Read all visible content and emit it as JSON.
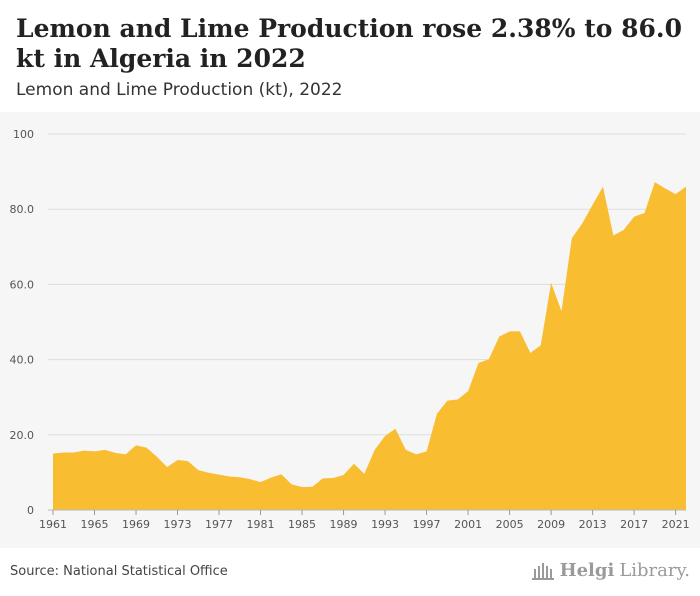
{
  "header": {
    "title": "Lemon and Lime Production rose 2.38% to 86.0 kt in Algeria in 2022",
    "subtitle": "Lemon and Lime Production (kt), 2022"
  },
  "footer": {
    "source": "Source: National Statistical Office",
    "logo_part1": "Helgi",
    "logo_part2": "Library."
  },
  "colors": {
    "area_fill": "#f8bd31",
    "gridline": "#dddddd",
    "plot_background": "#f6f6f6"
  },
  "chart_data": {
    "type": "area",
    "title": "Lemon and Lime Production (kt), 2022",
    "xlabel": "",
    "ylabel": "",
    "x": [
      1961,
      1962,
      1963,
      1964,
      1965,
      1966,
      1967,
      1968,
      1969,
      1970,
      1971,
      1972,
      1973,
      1974,
      1975,
      1976,
      1977,
      1978,
      1979,
      1980,
      1981,
      1982,
      1983,
      1984,
      1985,
      1986,
      1987,
      1988,
      1989,
      1990,
      1991,
      1992,
      1993,
      1994,
      1995,
      1996,
      1997,
      1998,
      1999,
      2000,
      2001,
      2002,
      2003,
      2004,
      2005,
      2006,
      2007,
      2008,
      2009,
      2010,
      2011,
      2012,
      2013,
      2014,
      2015,
      2016,
      2017,
      2018,
      2019,
      2020,
      2021,
      2022
    ],
    "series": [
      {
        "values": [
          15.0,
          15.3,
          15.3,
          15.8,
          15.6,
          16.0,
          15.2,
          14.8,
          17.2,
          16.6,
          14.2,
          11.4,
          13.3,
          13.0,
          10.6,
          9.9,
          9.4,
          8.9,
          8.7,
          8.2,
          7.4,
          8.6,
          9.5,
          6.8,
          6.1,
          6.2,
          8.4,
          8.5,
          9.3,
          12.3,
          9.6,
          16.0,
          19.7,
          21.6,
          16.0,
          14.8,
          15.6,
          25.6,
          29.1,
          29.4,
          31.6,
          39.1,
          40.1,
          46.1,
          47.5,
          47.5,
          41.8,
          43.8,
          60.4,
          52.9,
          72.3,
          76.2,
          81.2,
          86.0,
          73.0,
          74.5,
          78.0,
          79.0,
          87.2,
          85.5,
          84.0,
          86.0
        ]
      }
    ],
    "ylim": [
      0,
      100
    ],
    "y_ticks": [
      0,
      20,
      40,
      60,
      80,
      100
    ],
    "y_tick_labels": [
      "0",
      "20.0",
      "40.0",
      "60.0",
      "80.0",
      "100"
    ],
    "x_ticks": [
      1961,
      1965,
      1969,
      1973,
      1977,
      1981,
      1985,
      1989,
      1993,
      1997,
      2001,
      2005,
      2009,
      2013,
      2017,
      2021
    ],
    "x_tick_labels": [
      "1961",
      "1965",
      "1969",
      "1973",
      "1977",
      "1981",
      "1985",
      "1989",
      "1993",
      "1997",
      "2001",
      "2005",
      "2009",
      "2013",
      "2017",
      "2021"
    ],
    "grid": true,
    "legend": "none"
  }
}
